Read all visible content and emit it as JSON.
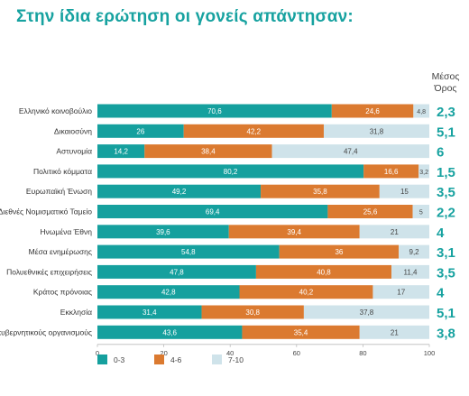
{
  "header": {
    "title": "Στην ίδια ερώτηση οι γονείς απάντησαν:"
  },
  "mean_header": {
    "line1": "Μέσος",
    "line2": "Όρος"
  },
  "colors": {
    "title": "#17a2a0",
    "segment_0_3": "#15a09e",
    "segment_4_6": "#db7a30",
    "segment_7_10": "#cfe3ea",
    "mean_text": "#17a2a0"
  },
  "chart_data": {
    "type": "bar",
    "orientation": "horizontal",
    "stacked": true,
    "title": "Στην ίδια ερώτηση οι γονείς απάντησαν:",
    "xlim": [
      0,
      100
    ],
    "x_ticks": [
      "0",
      "20",
      "40",
      "60",
      "80",
      "100"
    ],
    "categories": [
      "Ελληνικό κοινοβούλιο",
      "Δικαιοσύνη",
      "Αστυνομία",
      "Πολιτικό κόμματα",
      "Ευρωπαϊκή Ένωση",
      "Διεθνές Νομισματικό Ταμείο",
      "Ηνωμένα Έθνη",
      "Μέσα ενημέρωσης",
      "Πολυεθνικές επιχειρήσεις",
      "Κράτος πρόνοιας",
      "Εκκλησία",
      "Μη-κυβερνητικούς οργανισμούς"
    ],
    "series": [
      {
        "name": "0-3",
        "values": [
          70.6,
          26,
          14.2,
          80.2,
          49.2,
          69.4,
          39.6,
          54.8,
          47.8,
          42.8,
          31.4,
          43.6
        ],
        "labels": [
          "70,6",
          "26",
          "14,2",
          "80,2",
          "49,2",
          "69,4",
          "39,6",
          "54,8",
          "47,8",
          "42,8",
          "31,4",
          "43,6"
        ]
      },
      {
        "name": "4-6",
        "values": [
          24.6,
          42.2,
          38.4,
          16.6,
          35.8,
          25.6,
          39.4,
          36,
          40.8,
          40.2,
          30.8,
          35.4
        ],
        "labels": [
          "24,6",
          "42,2",
          "38,4",
          "16,6",
          "35,8",
          "25,6",
          "39,4",
          "36",
          "40,8",
          "40,2",
          "30,8",
          "35,4"
        ]
      },
      {
        "name": "7-10",
        "values": [
          4.8,
          31.8,
          47.4,
          3.2,
          15,
          5,
          21,
          9.2,
          11.4,
          17,
          37.8,
          21
        ],
        "labels": [
          "4,8",
          "31,8",
          "47,4",
          "3,2",
          "15",
          "5",
          "21",
          "9,2",
          "11,4",
          "17",
          "37,8",
          "21"
        ]
      }
    ],
    "means": [
      "2,3",
      "5,1",
      "6",
      "1,5",
      "3,5",
      "2,2",
      "4",
      "3,1",
      "3,5",
      "4",
      "5,1",
      "3,8"
    ],
    "legend": [
      "0-3",
      "4-6",
      "7-10"
    ],
    "legend_position": "bottom",
    "grid": false
  }
}
